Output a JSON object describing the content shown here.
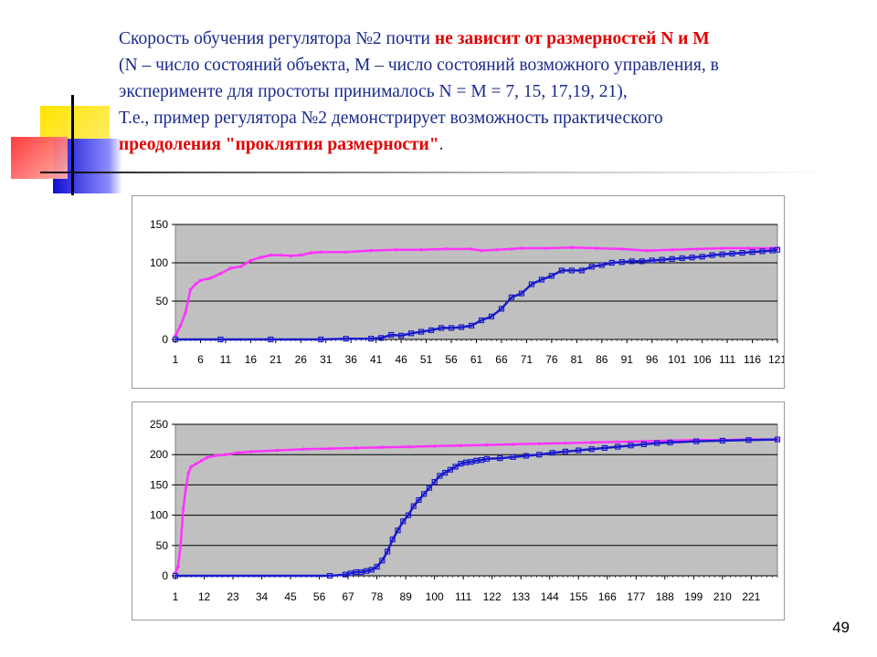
{
  "text": {
    "l1_a": "Скорость обучения регулятора №2 почти ",
    "l1_b": "не зависит от размерностей N и M",
    "l2": "(N – число состояний объекта, M – число состояний возможного управления, в",
    "l3": "эксперименте для простоты принималось N = M = 7, 15, 17,19, 21),",
    "l4": "Т.е., пример регулятора №2 демонстрирует возможность практического",
    "l5_a": "преодоления \"проклятия размерности\"",
    "l5_b": "."
  },
  "page_number": "49",
  "colors": {
    "pink": "#ff33ff",
    "blue": "#1a1acc",
    "plot_bg": "#c0c0c0",
    "text": "#1a2a8c",
    "highlight": "#e00000"
  },
  "chart_data": [
    {
      "type": "line",
      "title": "",
      "xlabel": "",
      "ylabel": "",
      "ylim": [
        0,
        150
      ],
      "yticks": [
        "0",
        "50",
        "100",
        "150"
      ],
      "xticks": [
        "1",
        "6",
        "11",
        "16",
        "21",
        "26",
        "31",
        "36",
        "41",
        "46",
        "51",
        "56",
        "61",
        "66",
        "71",
        "76",
        "81",
        "86",
        "91",
        "96",
        "101",
        "106",
        "111",
        "116",
        "121"
      ],
      "x_range": [
        1,
        121
      ],
      "grid": "horizontal",
      "legend": "none",
      "series": [
        {
          "color": "#ff33ff",
          "marker": "cross",
          "points": [
            [
              1,
              5
            ],
            [
              2,
              18
            ],
            [
              3,
              35
            ],
            [
              4,
              65
            ],
            [
              5,
              72
            ],
            [
              6,
              77
            ],
            [
              8,
              80
            ],
            [
              10,
              86
            ],
            [
              12,
              93
            ],
            [
              14,
              95
            ],
            [
              16,
              103
            ],
            [
              18,
              107
            ],
            [
              20,
              110
            ],
            [
              22,
              110
            ],
            [
              24,
              109
            ],
            [
              26,
              110
            ],
            [
              28,
              113
            ],
            [
              30,
              114
            ],
            [
              35,
              114
            ],
            [
              40,
              116
            ],
            [
              45,
              117
            ],
            [
              50,
              117
            ],
            [
              55,
              118
            ],
            [
              60,
              118
            ],
            [
              62,
              116
            ],
            [
              65,
              117
            ],
            [
              68,
              118
            ],
            [
              70,
              119
            ],
            [
              75,
              119
            ],
            [
              80,
              120
            ],
            [
              85,
              119
            ],
            [
              90,
              118
            ],
            [
              95,
              116
            ],
            [
              100,
              117
            ],
            [
              105,
              118
            ],
            [
              110,
              119
            ],
            [
              115,
              119
            ],
            [
              120,
              119
            ],
            [
              121,
              119
            ]
          ]
        },
        {
          "color": "#1a1acc",
          "marker": "square",
          "points": [
            [
              1,
              0
            ],
            [
              10,
              0
            ],
            [
              20,
              0
            ],
            [
              30,
              0
            ],
            [
              35,
              1
            ],
            [
              40,
              1
            ],
            [
              42,
              2
            ],
            [
              44,
              6
            ],
            [
              46,
              5
            ],
            [
              48,
              8
            ],
            [
              50,
              10
            ],
            [
              52,
              12
            ],
            [
              54,
              15
            ],
            [
              56,
              15
            ],
            [
              58,
              16
            ],
            [
              60,
              18
            ],
            [
              62,
              25
            ],
            [
              64,
              30
            ],
            [
              66,
              40
            ],
            [
              68,
              55
            ],
            [
              70,
              60
            ],
            [
              72,
              72
            ],
            [
              74,
              78
            ],
            [
              76,
              83
            ],
            [
              78,
              90
            ],
            [
              80,
              90
            ],
            [
              82,
              90
            ],
            [
              84,
              95
            ],
            [
              86,
              97
            ],
            [
              88,
              100
            ],
            [
              90,
              101
            ],
            [
              92,
              102
            ],
            [
              94,
              102
            ],
            [
              96,
              103
            ],
            [
              98,
              104
            ],
            [
              100,
              105
            ],
            [
              102,
              106
            ],
            [
              104,
              107
            ],
            [
              106,
              108
            ],
            [
              108,
              110
            ],
            [
              110,
              111
            ],
            [
              112,
              112
            ],
            [
              114,
              113
            ],
            [
              116,
              114
            ],
            [
              118,
              115
            ],
            [
              120,
              116
            ],
            [
              121,
              117
            ]
          ]
        }
      ]
    },
    {
      "type": "line",
      "title": "",
      "xlabel": "",
      "ylabel": "",
      "ylim": [
        0,
        250
      ],
      "yticks": [
        "0",
        "50",
        "100",
        "150",
        "200",
        "250"
      ],
      "xticks": [
        "1",
        "12",
        "23",
        "34",
        "45",
        "56",
        "67",
        "78",
        "89",
        "100",
        "111",
        "122",
        "133",
        "144",
        "155",
        "166",
        "177",
        "188",
        "199",
        "210",
        "221"
      ],
      "x_range": [
        1,
        231
      ],
      "grid": "horizontal",
      "legend": "none",
      "series": [
        {
          "color": "#ff33ff",
          "marker": "cross",
          "points": [
            [
              1,
              5
            ],
            [
              2,
              15
            ],
            [
              3,
              50
            ],
            [
              4,
              110
            ],
            [
              5,
              145
            ],
            [
              6,
              170
            ],
            [
              7,
              180
            ],
            [
              9,
              185
            ],
            [
              11,
              190
            ],
            [
              13,
              195
            ],
            [
              16,
              198
            ],
            [
              20,
              200
            ],
            [
              25,
              203
            ],
            [
              30,
              205
            ],
            [
              40,
              207
            ],
            [
              50,
              209
            ],
            [
              60,
              210
            ],
            [
              70,
              211
            ],
            [
              80,
              212
            ],
            [
              90,
              213
            ],
            [
              100,
              214
            ],
            [
              110,
              215
            ],
            [
              120,
              216
            ],
            [
              130,
              217
            ],
            [
              140,
              218
            ],
            [
              150,
              219
            ],
            [
              160,
              220
            ],
            [
              170,
              221
            ],
            [
              180,
              222
            ],
            [
              190,
              223
            ],
            [
              200,
              224
            ],
            [
              210,
              224
            ],
            [
              220,
              225
            ],
            [
              231,
              225
            ]
          ]
        },
        {
          "color": "#1a1acc",
          "marker": "square",
          "points": [
            [
              1,
              0
            ],
            [
              60,
              0
            ],
            [
              66,
              2
            ],
            [
              68,
              4
            ],
            [
              70,
              6
            ],
            [
              72,
              6
            ],
            [
              74,
              8
            ],
            [
              76,
              10
            ],
            [
              78,
              15
            ],
            [
              80,
              25
            ],
            [
              82,
              40
            ],
            [
              84,
              60
            ],
            [
              86,
              75
            ],
            [
              88,
              90
            ],
            [
              90,
              100
            ],
            [
              92,
              115
            ],
            [
              94,
              125
            ],
            [
              96,
              135
            ],
            [
              98,
              145
            ],
            [
              100,
              155
            ],
            [
              102,
              165
            ],
            [
              104,
              170
            ],
            [
              106,
              175
            ],
            [
              108,
              180
            ],
            [
              110,
              185
            ],
            [
              112,
              187
            ],
            [
              114,
              188
            ],
            [
              116,
              190
            ],
            [
              118,
              191
            ],
            [
              120,
              193
            ],
            [
              125,
              194
            ],
            [
              130,
              196
            ],
            [
              135,
              198
            ],
            [
              140,
              200
            ],
            [
              145,
              203
            ],
            [
              150,
              205
            ],
            [
              155,
              207
            ],
            [
              160,
              209
            ],
            [
              165,
              211
            ],
            [
              170,
              213
            ],
            [
              175,
              215
            ],
            [
              180,
              217
            ],
            [
              185,
              219
            ],
            [
              190,
              220
            ],
            [
              200,
              222
            ],
            [
              210,
              223
            ],
            [
              220,
              224
            ],
            [
              231,
              225
            ]
          ]
        }
      ]
    }
  ]
}
